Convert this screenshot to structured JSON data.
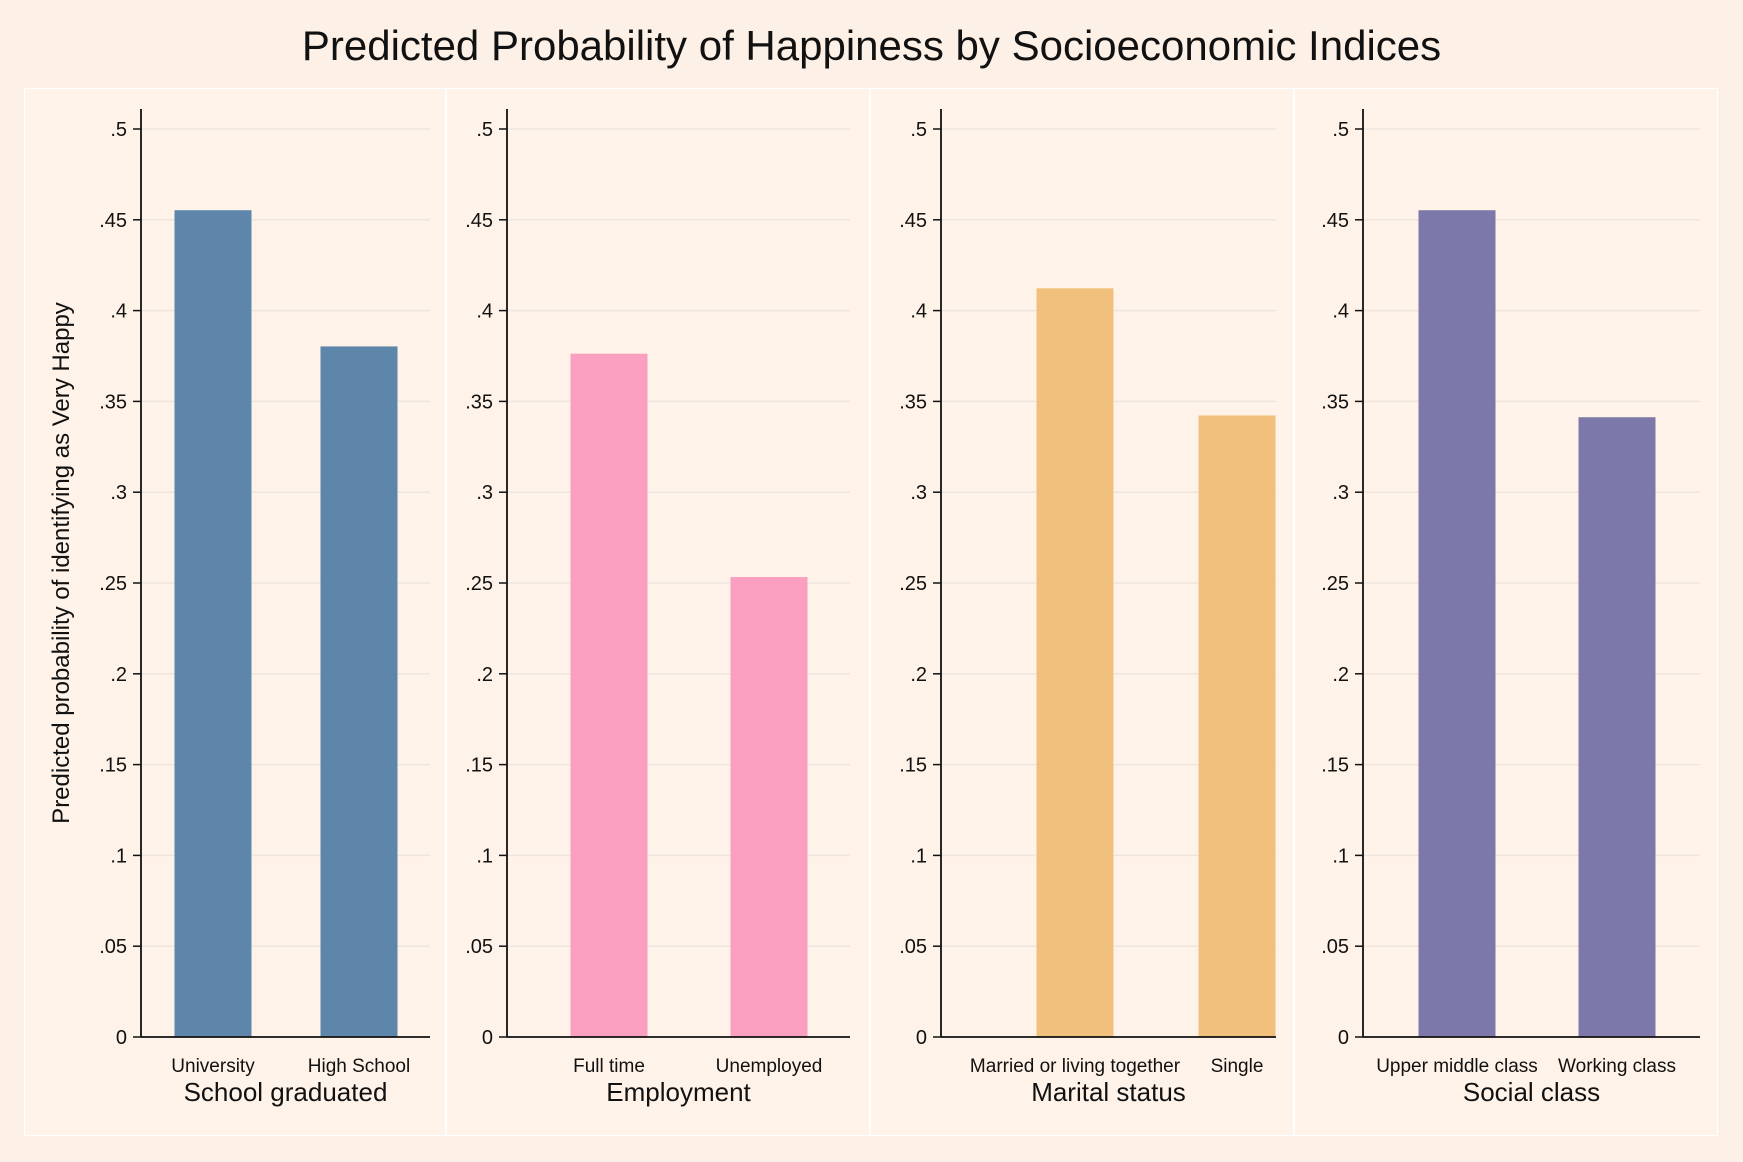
{
  "title": "Predicted Probability of Happiness by Socioeconomic Indices",
  "ylabel": "Predicted probability of identifying as Very Happy",
  "chart_data": [
    {
      "type": "bar",
      "xlabel": "School graduated",
      "categories": [
        "University",
        "High School"
      ],
      "values": [
        0.455,
        0.38
      ],
      "color": "#5e86ab",
      "ylim": [
        0,
        0.5
      ],
      "yticks": [
        0,
        0.05,
        0.1,
        0.15,
        0.2,
        0.25,
        0.3,
        0.35,
        0.4,
        0.45,
        0.5
      ],
      "ytick_labels": [
        "0",
        ".05",
        ".1",
        ".15",
        ".2",
        ".25",
        ".3",
        ".35",
        ".4",
        ".45",
        ".5"
      ],
      "grid": true
    },
    {
      "type": "bar",
      "xlabel": "Employment",
      "categories": [
        "Full time",
        "Unemployed"
      ],
      "values": [
        0.376,
        0.253
      ],
      "color": "#fb9fc0",
      "ylim": [
        0,
        0.5
      ],
      "yticks": [
        0,
        0.05,
        0.1,
        0.15,
        0.2,
        0.25,
        0.3,
        0.35,
        0.4,
        0.45,
        0.5
      ],
      "ytick_labels": [
        "0",
        ".05",
        ".1",
        ".15",
        ".2",
        ".25",
        ".3",
        ".35",
        ".4",
        ".45",
        ".5"
      ],
      "grid": true
    },
    {
      "type": "bar",
      "xlabel": "Marital status",
      "categories": [
        "Married or living together",
        "Single"
      ],
      "values": [
        0.412,
        0.342
      ],
      "color": "#f0c07c",
      "ylim": [
        0,
        0.5
      ],
      "yticks": [
        0,
        0.05,
        0.1,
        0.15,
        0.2,
        0.25,
        0.3,
        0.35,
        0.4,
        0.45,
        0.5
      ],
      "ytick_labels": [
        "0",
        ".05",
        ".1",
        ".15",
        ".2",
        ".25",
        ".3",
        ".35",
        ".4",
        ".45",
        ".5"
      ],
      "grid": true
    },
    {
      "type": "bar",
      "xlabel": "Social class",
      "categories": [
        "Upper middle class",
        "Working class"
      ],
      "values": [
        0.455,
        0.341
      ],
      "color": "#7d78aa",
      "ylim": [
        0,
        0.5
      ],
      "yticks": [
        0,
        0.05,
        0.1,
        0.15,
        0.2,
        0.25,
        0.3,
        0.35,
        0.4,
        0.45,
        0.5
      ],
      "ytick_labels": [
        "0",
        ".05",
        ".1",
        ".15",
        ".2",
        ".25",
        ".3",
        ".35",
        ".4",
        ".45",
        ".5"
      ],
      "grid": true
    }
  ]
}
